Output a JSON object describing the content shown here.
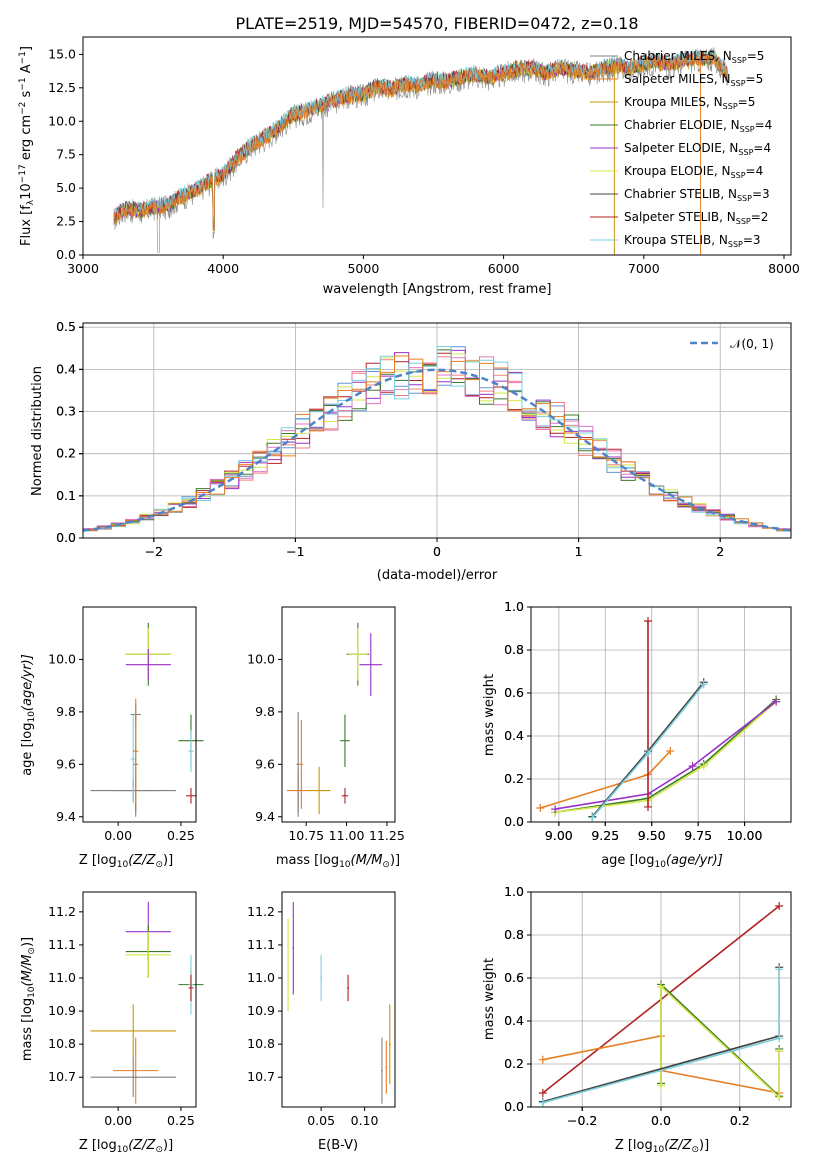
{
  "colors": [
    "#808080",
    "#e67e22",
    "#c8960a",
    "#3a7a2a",
    "#9b30c8",
    "#d4e84c",
    "#444444",
    "#b22222",
    "#7ecfdc"
  ],
  "accent_colors": {
    "hist_blue": "#6495d6",
    "hist_salmon": "#f08080",
    "hist_pink": "#e377c2",
    "hist_teal": "#2f8080",
    "normal": "#4f83c9"
  },
  "chart_data": [
    {
      "type": "line",
      "panel": "spectrum",
      "title": "PLATE=2519, MJD=54570, FIBERID=0472, z=0.18",
      "xlabel": "wavelength [Angstrom, rest frame]",
      "ylabel": "Flux [f",
      "ylabel_parts": [
        "Flux [f",
        "λ",
        "10",
        "−17",
        " erg cm",
        "−2",
        " s",
        "−1",
        " A",
        "−1",
        "]"
      ],
      "xlim": [
        3000,
        8050
      ],
      "ylim": [
        0,
        16.3
      ],
      "xticks": [
        "3000",
        "4000",
        "5000",
        "6000",
        "7000",
        "8000"
      ],
      "yticks": [
        "0.0",
        "2.5",
        "5.0",
        "7.5",
        "10.0",
        "12.5",
        "15.0"
      ],
      "x": [
        3220,
        3300,
        3400,
        3500,
        3600,
        3700,
        3800,
        3900,
        4000,
        4100,
        4200,
        4300,
        4400,
        4500,
        4600,
        4700,
        4800,
        4900,
        5000,
        5100,
        5200,
        5300,
        5400,
        5500,
        5600,
        5700,
        5800,
        5900,
        6000,
        6100,
        6200,
        6300,
        6400,
        6500,
        6600,
        6700,
        6800,
        6900,
        7000,
        7100,
        7200,
        7300,
        7400,
        7500,
        7600
      ],
      "y": [
        2.8,
        3.5,
        3.3,
        3.6,
        3.7,
        4.4,
        4.8,
        5.5,
        6.0,
        7.2,
        8.2,
        8.8,
        9.6,
        10.5,
        10.8,
        11.2,
        11.6,
        12.0,
        12.0,
        12.6,
        12.4,
        12.8,
        12.7,
        13.1,
        13.0,
        13.3,
        13.5,
        13.3,
        13.6,
        13.9,
        14.0,
        13.6,
        14.0,
        13.8,
        13.6,
        13.9,
        14.2,
        14.0,
        14.3,
        14.5,
        14.2,
        14.6,
        14.7,
        14.8,
        13.4
      ],
      "legend_placement": "top-right",
      "legend": [
        {
          "label": "Chabrier MILES, N",
          "sub": "SSP",
          "val": "=5"
        },
        {
          "label": "Salpeter MILES, N",
          "sub": "SSP",
          "val": "=5"
        },
        {
          "label": "Kroupa MILES, N",
          "sub": "SSP",
          "val": "=5"
        },
        {
          "label": "Chabrier ELODIE, N",
          "sub": "SSP",
          "val": "=4"
        },
        {
          "label": "Salpeter ELODIE, N",
          "sub": "SSP",
          "val": "=4"
        },
        {
          "label": "Kroupa ELODIE, N",
          "sub": "SSP",
          "val": "=4"
        },
        {
          "label": "Chabrier STELIB, N",
          "sub": "SSP",
          "val": "=3"
        },
        {
          "label": "Salpeter STELIB, N",
          "sub": "SSP",
          "val": "=2"
        },
        {
          "label": "Kroupa STELIB, N",
          "sub": "SSP",
          "val": "=3"
        }
      ]
    },
    {
      "type": "histogram",
      "panel": "residuals",
      "xlabel": "(data-model)/error",
      "ylabel": "Normed distribution",
      "xlim": [
        -2.5,
        2.5
      ],
      "ylim": [
        0,
        0.51
      ],
      "xticks": [
        "−2",
        "−1",
        "0",
        "1",
        "2"
      ],
      "yticks": [
        "0.0",
        "0.1",
        "0.2",
        "0.3",
        "0.4",
        "0.5"
      ],
      "grid": true,
      "legend_placement": "top-right",
      "legend": [
        {
          "label": "𝒩(0, 1)"
        }
      ],
      "bin_edges_start": -2.5,
      "bin_width": 0.1,
      "reference": {
        "name": "𝒩(0, 1)",
        "mean": 0,
        "sigma": 1
      }
    },
    {
      "type": "errorbar",
      "panel": "age-vs-Z",
      "xlabel": "Z [log",
      "xlabel_parts": [
        "Z [log",
        "10",
        "(Z/Z",
        "⊙",
        ")]"
      ],
      "ylabel_parts": [
        "age  [log",
        "10",
        "(age/yr)]"
      ],
      "xlim": [
        -0.14,
        0.31
      ],
      "ylim": [
        9.38,
        10.2
      ],
      "xticks": [
        "0.00",
        "0.25"
      ],
      "yticks": [
        "9.4",
        "9.6",
        "9.8",
        "10.0"
      ],
      "points": [
        {
          "x": 0.12,
          "y": 10.02,
          "xerr": 0.09,
          "yerr": 0.12,
          "c": 3
        },
        {
          "x": 0.12,
          "y": 10.02,
          "xerr": 0.09,
          "yerr": 0.1,
          "c": 5
        },
        {
          "x": 0.12,
          "y": 9.98,
          "xerr": 0.09,
          "yerr": 0.06,
          "c": 4
        },
        {
          "x": 0.07,
          "y": 9.5,
          "xerr": 0.09,
          "yerr": 0.08,
          "c": 1
        },
        {
          "x": 0.06,
          "y": 9.5,
          "xerr": 0.17,
          "yerr": 0.04,
          "c": 0
        },
        {
          "x": 0.07,
          "y": 9.79,
          "xerr": 0.02,
          "yerr": 0.04,
          "c": 0
        },
        {
          "x": 0.07,
          "y": 9.6,
          "xerr": 0.01,
          "yerr": 0.2,
          "c": 0
        },
        {
          "x": 0.06,
          "y": 9.62,
          "xerr": 0.01,
          "yerr": 0.17,
          "c": 8
        },
        {
          "x": 0.07,
          "y": 9.65,
          "xerr": 0.01,
          "yerr": 0.2,
          "c": 1
        },
        {
          "x": 0.29,
          "y": 9.69,
          "xerr": 0.05,
          "yerr": 0.1,
          "c": 3
        },
        {
          "x": 0.29,
          "y": 9.65,
          "xerr": 0.01,
          "yerr": 0.08,
          "c": 8
        },
        {
          "x": 0.29,
          "y": 9.48,
          "xerr": 0.02,
          "yerr": 0.03,
          "c": 7
        }
      ]
    },
    {
      "type": "errorbar",
      "panel": "age-vs-mass",
      "xlabel_parts": [
        "mass [log",
        "10",
        "(M/M",
        "⊙",
        ")]"
      ],
      "xlim": [
        10.6,
        11.3
      ],
      "ylim": [
        9.38,
        10.2
      ],
      "xticks": [
        "10.75",
        "11.00",
        "11.25"
      ],
      "yticks": [
        "9.4",
        "9.6",
        "9.8",
        "10.0"
      ],
      "points": [
        {
          "x": 11.07,
          "y": 10.02,
          "xerr": 0.07,
          "yerr": 0.12,
          "c": 3
        },
        {
          "x": 11.07,
          "y": 10.02,
          "xerr": 0.06,
          "yerr": 0.1,
          "c": 5
        },
        {
          "x": 11.15,
          "y": 9.98,
          "xerr": 0.07,
          "yerr": 0.12,
          "c": 4
        },
        {
          "x": 10.7,
          "y": 9.5,
          "xerr": 0.07,
          "yerr": 0.08,
          "c": 1
        },
        {
          "x": 10.7,
          "y": 9.6,
          "xerr": 0.01,
          "yerr": 0.2,
          "c": 0
        },
        {
          "x": 10.72,
          "y": 9.6,
          "xerr": 0.01,
          "yerr": 0.17,
          "c": 1
        },
        {
          "x": 10.83,
          "y": 9.5,
          "xerr": 0.07,
          "yerr": 0.09,
          "c": 2
        },
        {
          "x": 10.99,
          "y": 9.69,
          "xerr": 0.03,
          "yerr": 0.1,
          "c": 3
        },
        {
          "x": 10.99,
          "y": 9.48,
          "xerr": 0.02,
          "yerr": 0.03,
          "c": 7
        }
      ]
    },
    {
      "type": "line",
      "panel": "massweight-vs-age",
      "xlabel_parts": [
        "age  [log",
        "10",
        "(age/yr)]"
      ],
      "ylabel": "mass weight",
      "xlim": [
        8.85,
        10.25
      ],
      "ylim": [
        0,
        1
      ],
      "xticks": [
        "9.00",
        "9.25",
        "9.50",
        "9.75",
        "10.00"
      ],
      "yticks": [
        "0.0",
        "0.2",
        "0.4",
        "0.6",
        "0.8",
        "1.0"
      ],
      "grid": true,
      "series": [
        {
          "c": 1,
          "x": [
            8.9,
            9.48,
            9.6
          ],
          "y": [
            0.065,
            0.22,
            0.33
          ]
        },
        {
          "c": 3,
          "x": [
            8.98,
            9.48,
            9.78,
            10.17
          ],
          "y": [
            0.045,
            0.11,
            0.27,
            0.57
          ]
        },
        {
          "c": 5,
          "x": [
            8.98,
            9.48,
            9.78,
            10.17
          ],
          "y": [
            0.045,
            0.1,
            0.26,
            0.56
          ]
        },
        {
          "c": 4,
          "x": [
            8.98,
            9.48,
            9.72,
            10.17
          ],
          "y": [
            0.06,
            0.13,
            0.26,
            0.56
          ]
        },
        {
          "c": 7,
          "x": [
            9.48,
            9.48
          ],
          "y": [
            0.07,
            0.935
          ]
        },
        {
          "c": 6,
          "x": [
            9.18,
            9.48,
            9.78
          ],
          "y": [
            0.025,
            0.33,
            0.65
          ]
        },
        {
          "c": 8,
          "x": [
            9.18,
            9.48,
            9.78
          ],
          "y": [
            0.02,
            0.32,
            0.64
          ]
        }
      ]
    },
    {
      "type": "errorbar",
      "panel": "mass-vs-Z",
      "xlabel_parts": [
        "Z [log",
        "10",
        "(Z/Z",
        "⊙",
        ")]"
      ],
      "ylabel_parts": [
        "mass [log",
        "10",
        "(M/M",
        "⊙",
        ")]"
      ],
      "xlim": [
        -0.14,
        0.31
      ],
      "ylim": [
        10.61,
        11.26
      ],
      "xticks": [
        "0.00",
        "0.25"
      ],
      "yticks": [
        "10.7",
        "10.8",
        "10.9",
        "11.0",
        "11.1",
        "11.2"
      ],
      "points": [
        {
          "x": 0.12,
          "y": 11.14,
          "xerr": 0.09,
          "yerr": 0.09,
          "c": 4
        },
        {
          "x": 0.12,
          "y": 11.08,
          "xerr": 0.09,
          "yerr": 0.08,
          "c": 3
        },
        {
          "x": 0.12,
          "y": 11.07,
          "xerr": 0.09,
          "yerr": 0.07,
          "c": 5
        },
        {
          "x": 0.06,
          "y": 10.84,
          "xerr": 0.17,
          "yerr": 0.08,
          "c": 2
        },
        {
          "x": 0.07,
          "y": 10.72,
          "xerr": 0.09,
          "yerr": 0.1,
          "c": 1
        },
        {
          "x": 0.06,
          "y": 10.7,
          "xerr": 0.17,
          "yerr": 0.06,
          "c": 0
        },
        {
          "x": 0.29,
          "y": 10.98,
          "xerr": 0.05,
          "yerr": 0.05,
          "c": 3
        },
        {
          "x": 0.29,
          "y": 10.98,
          "xerr": 0.01,
          "yerr": 0.09,
          "c": 8
        },
        {
          "x": 0.29,
          "y": 10.97,
          "xerr": 0.01,
          "yerr": 0.04,
          "c": 7
        }
      ]
    },
    {
      "type": "errorbar",
      "panel": "mass-vs-EBV",
      "xlabel": "E(B-V)",
      "xlim": [
        0.005,
        0.135
      ],
      "ylim": [
        10.61,
        11.26
      ],
      "xticks": [
        "0.05",
        "0.10"
      ],
      "yticks": [
        "10.7",
        "10.8",
        "10.9",
        "11.0",
        "11.1",
        "11.2"
      ],
      "points": [
        {
          "x": 0.012,
          "y": 11.04,
          "xerr": 0.001,
          "yerr": 0.14,
          "c": 5
        },
        {
          "x": 0.018,
          "y": 11.09,
          "xerr": 0.001,
          "yerr": 0.14,
          "c": 4
        },
        {
          "x": 0.05,
          "y": 11.0,
          "xerr": 0.001,
          "yerr": 0.07,
          "c": 8
        },
        {
          "x": 0.081,
          "y": 10.97,
          "xerr": 0.001,
          "yerr": 0.04,
          "c": 7
        },
        {
          "x": 0.12,
          "y": 10.72,
          "xerr": 0.001,
          "yerr": 0.1,
          "c": 0
        },
        {
          "x": 0.125,
          "y": 10.73,
          "xerr": 0.001,
          "yerr": 0.08,
          "c": 1
        },
        {
          "x": 0.129,
          "y": 10.8,
          "xerr": 0.001,
          "yerr": 0.12,
          "c": 2
        }
      ]
    },
    {
      "type": "line",
      "panel": "massweight-vs-Z",
      "xlabel_parts": [
        "Z [log",
        "10",
        "(Z/Z",
        "⊙",
        ")]"
      ],
      "ylabel": "mass weight",
      "xlim": [
        -0.33,
        0.33
      ],
      "ylim": [
        0,
        1
      ],
      "xticks": [
        "−0.2",
        "0.0",
        "0.2"
      ],
      "yticks": [
        "0.0",
        "0.2",
        "0.4",
        "0.6",
        "0.8",
        "1.0"
      ],
      "grid": true,
      "series": [
        {
          "c": 7,
          "x": [
            -0.3,
            0.3
          ],
          "y": [
            0.065,
            0.935
          ]
        },
        {
          "c": 1,
          "x": [
            -0.3,
            0.0,
            0.0,
            0.3,
            0.3
          ],
          "y": [
            0.22,
            0.33,
            0.17,
            0.065,
            0.26
          ]
        },
        {
          "c": 3,
          "x": [
            0.0,
            0.0,
            0.3,
            0.3
          ],
          "y": [
            0.11,
            0.57,
            0.05,
            0.27
          ]
        },
        {
          "c": 5,
          "x": [
            0.0,
            0.0,
            0.3,
            0.3
          ],
          "y": [
            0.1,
            0.56,
            0.045,
            0.26
          ]
        },
        {
          "c": 6,
          "x": [
            -0.3,
            0.3,
            0.3
          ],
          "y": [
            0.025,
            0.33,
            0.65
          ]
        },
        {
          "c": 8,
          "x": [
            -0.3,
            0.3,
            0.3
          ],
          "y": [
            0.02,
            0.32,
            0.64
          ]
        }
      ]
    }
  ]
}
